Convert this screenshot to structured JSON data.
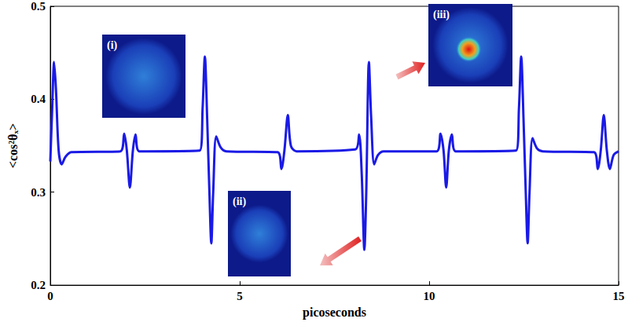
{
  "chart_data": {
    "type": "line",
    "x_label": "picoseconds",
    "y_label": "<cos²θₓ>",
    "xlim": [
      0,
      15
    ],
    "xticks": [
      0,
      5,
      10,
      15
    ],
    "ylim": [
      0.2,
      0.5
    ],
    "yticks": [
      0.2,
      0.3,
      0.4,
      0.5
    ],
    "grid": false,
    "marker": "none",
    "color": "#1a1ae6",
    "insets": [
      "(i)",
      "(ii)",
      "(iii)"
    ],
    "x": [
      0,
      0.05,
      0.1,
      0.15,
      0.22,
      0.3,
      0.4,
      0.55,
      1.85,
      1.95,
      2.02,
      2.1,
      2.18,
      2.25,
      2.35,
      3.95,
      4.02,
      4.08,
      4.14,
      4.2,
      4.25,
      4.3,
      4.38,
      4.5,
      4.65,
      6.0,
      6.1,
      6.18,
      6.27,
      6.35,
      6.5,
      8.05,
      8.15,
      8.22,
      8.29,
      8.34,
      8.41,
      8.47,
      8.55,
      8.65,
      8.8,
      10.2,
      10.3,
      10.38,
      10.45,
      10.52,
      10.6,
      10.7,
      12.3,
      12.37,
      12.43,
      12.49,
      12.55,
      12.6,
      12.65,
      12.73,
      12.85,
      13.0,
      14.35,
      14.45,
      14.53,
      14.61,
      14.69,
      14.77,
      14.87,
      15.0
    ],
    "values": [
      0.333,
      0.39,
      0.44,
      0.41,
      0.345,
      0.33,
      0.338,
      0.343,
      0.344,
      0.363,
      0.345,
      0.305,
      0.345,
      0.362,
      0.344,
      0.345,
      0.39,
      0.446,
      0.38,
      0.3,
      0.245,
      0.3,
      0.36,
      0.348,
      0.344,
      0.343,
      0.325,
      0.345,
      0.383,
      0.35,
      0.344,
      0.346,
      0.362,
      0.32,
      0.238,
      0.3,
      0.44,
      0.38,
      0.33,
      0.34,
      0.344,
      0.344,
      0.363,
      0.345,
      0.305,
      0.345,
      0.362,
      0.344,
      0.345,
      0.39,
      0.446,
      0.38,
      0.3,
      0.245,
      0.3,
      0.358,
      0.347,
      0.344,
      0.343,
      0.325,
      0.345,
      0.383,
      0.345,
      0.325,
      0.34,
      0.344
    ]
  }
}
